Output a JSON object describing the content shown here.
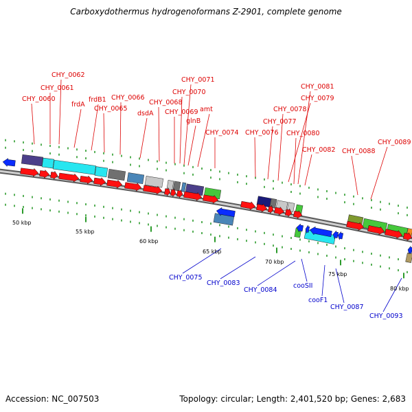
{
  "title": "Carboxydothermus hydrogenoformans Z-2901, complete genome",
  "footer": {
    "accession": "Accession: NC_007503",
    "summary": "Topology: circular; Length: 2,401,520 bp; Genes: 2,683"
  },
  "colors": {
    "forward_gene": "#ff1010",
    "reverse_gene": "#0a2cff",
    "forward_label": "#dd0000",
    "reverse_label": "#0000cc",
    "backbone": "#8c8c8c",
    "tick": "#2a9a2a",
    "cyan": "#27e6f0",
    "navy": "#4b3f8a",
    "dark_gray": "#707070",
    "light_gray": "#c8c8c8",
    "steel_blue": "#4a86b8",
    "green": "#46c83c",
    "olive": "#7f9a2e",
    "dark_navy": "#1a1a7a",
    "tan": "#b09a62"
  },
  "scale_labels": [
    "50 kbp",
    "55 kbp",
    "60 kbp",
    "65 kbp",
    "70 kbp",
    "75 kbp",
    "80 kbp"
  ],
  "forward_gene_labels": [
    "CHY_0060",
    "CHY_0061",
    "CHY_0062",
    "frdA",
    "frdB1",
    "CHY_0065",
    "CHY_0066",
    "dsdA",
    "CHY_0068",
    "CHY_0069",
    "CHY_0070",
    "CHY_0071",
    "glnB",
    "amt",
    "CHY_0074",
    "CHY_0076",
    "CHY_0077",
    "CHY_0078",
    "CHY_0079",
    "CHY_0080",
    "CHY_0081",
    "CHY_0082",
    "CHY_0088",
    "CHY_0089"
  ],
  "reverse_gene_labels": [
    "CHY_0075",
    "CHY_0083",
    "CHY_0084",
    "cooSII",
    "cooF1",
    "CHY_0087",
    "CHY_0093"
  ]
}
